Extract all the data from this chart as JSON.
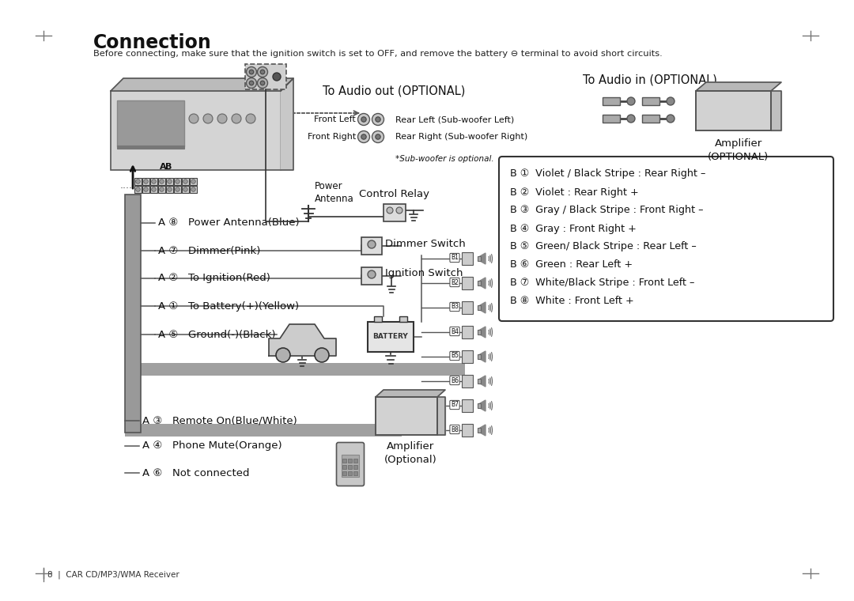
{
  "title": "Connection",
  "subtitle": "Before connecting, make sure that the ignition switch is set to OFF, and remove the battery ⊖ terminal to avoid short circuits.",
  "footer": "8  |  CAR CD/MP3/WMA Receiver",
  "bg_color": "#ffffff",
  "a_labels": [
    {
      "num": 8,
      "text": "Power Antenna(Blue)",
      "circled": "⑧"
    },
    {
      "num": 7,
      "text": "Dimmer(Pink)",
      "circled": "⑦"
    },
    {
      "num": 2,
      "text": "To Ignition(Red)",
      "circled": "②"
    },
    {
      "num": 1,
      "text": "To Battery(+)(Yellow)",
      "circled": "①"
    },
    {
      "num": 5,
      "text": "Ground(-)(Black)",
      "circled": "⑤"
    },
    {
      "num": 3,
      "text": "Remote On(Blue/White)",
      "circled": "③"
    },
    {
      "num": 4,
      "text": "Phone Mute(Orange)",
      "circled": "④"
    },
    {
      "num": 6,
      "text": "Not connected",
      "circled": "⑥"
    }
  ],
  "b_labels": [
    {
      "num": 1,
      "circled": "①",
      "text": "Violet / Black Stripe : Rear Right –"
    },
    {
      "num": 2,
      "circled": "②",
      "text": "Violet : Rear Right +"
    },
    {
      "num": 3,
      "circled": "③",
      "text": "Gray / Black Stripe : Front Right –"
    },
    {
      "num": 4,
      "circled": "④",
      "text": "Gray : Front Right +"
    },
    {
      "num": 5,
      "circled": "⑤",
      "text": "Green/ Black Stripe : Rear Left –"
    },
    {
      "num": 6,
      "circled": "⑥",
      "text": "Green : Rear Left +"
    },
    {
      "num": 7,
      "circled": "⑦",
      "text": "White/Black Stripe : Front Left –"
    },
    {
      "num": 8,
      "circled": "⑧",
      "text": "White : Front Left +"
    }
  ],
  "to_audio_out": "To Audio out (OPTIONAL)",
  "to_audio_in": "To Audio in (OPTIONAL)",
  "front_left": "Front Left",
  "front_right": "Front Right",
  "rear_left_sub": "Rear Left (Sub-woofer Left)",
  "rear_right_sub": "Rear Right (Sub-woofer Right)",
  "sub_note": "*Sub-woofer is optional.",
  "amplifier_optional": "Amplifier\n(OPTIONAL)",
  "amplifier_optional2": "Amplifier\n(Optional)",
  "power_antenna": "Power\nAntenna",
  "control_relay": "Control Relay",
  "dimmer_switch": "Dimmer Switch",
  "ignition_switch": "Ignition Switch",
  "battery_label": "BATTERY",
  "label_A": "A",
  "label_B": "B"
}
